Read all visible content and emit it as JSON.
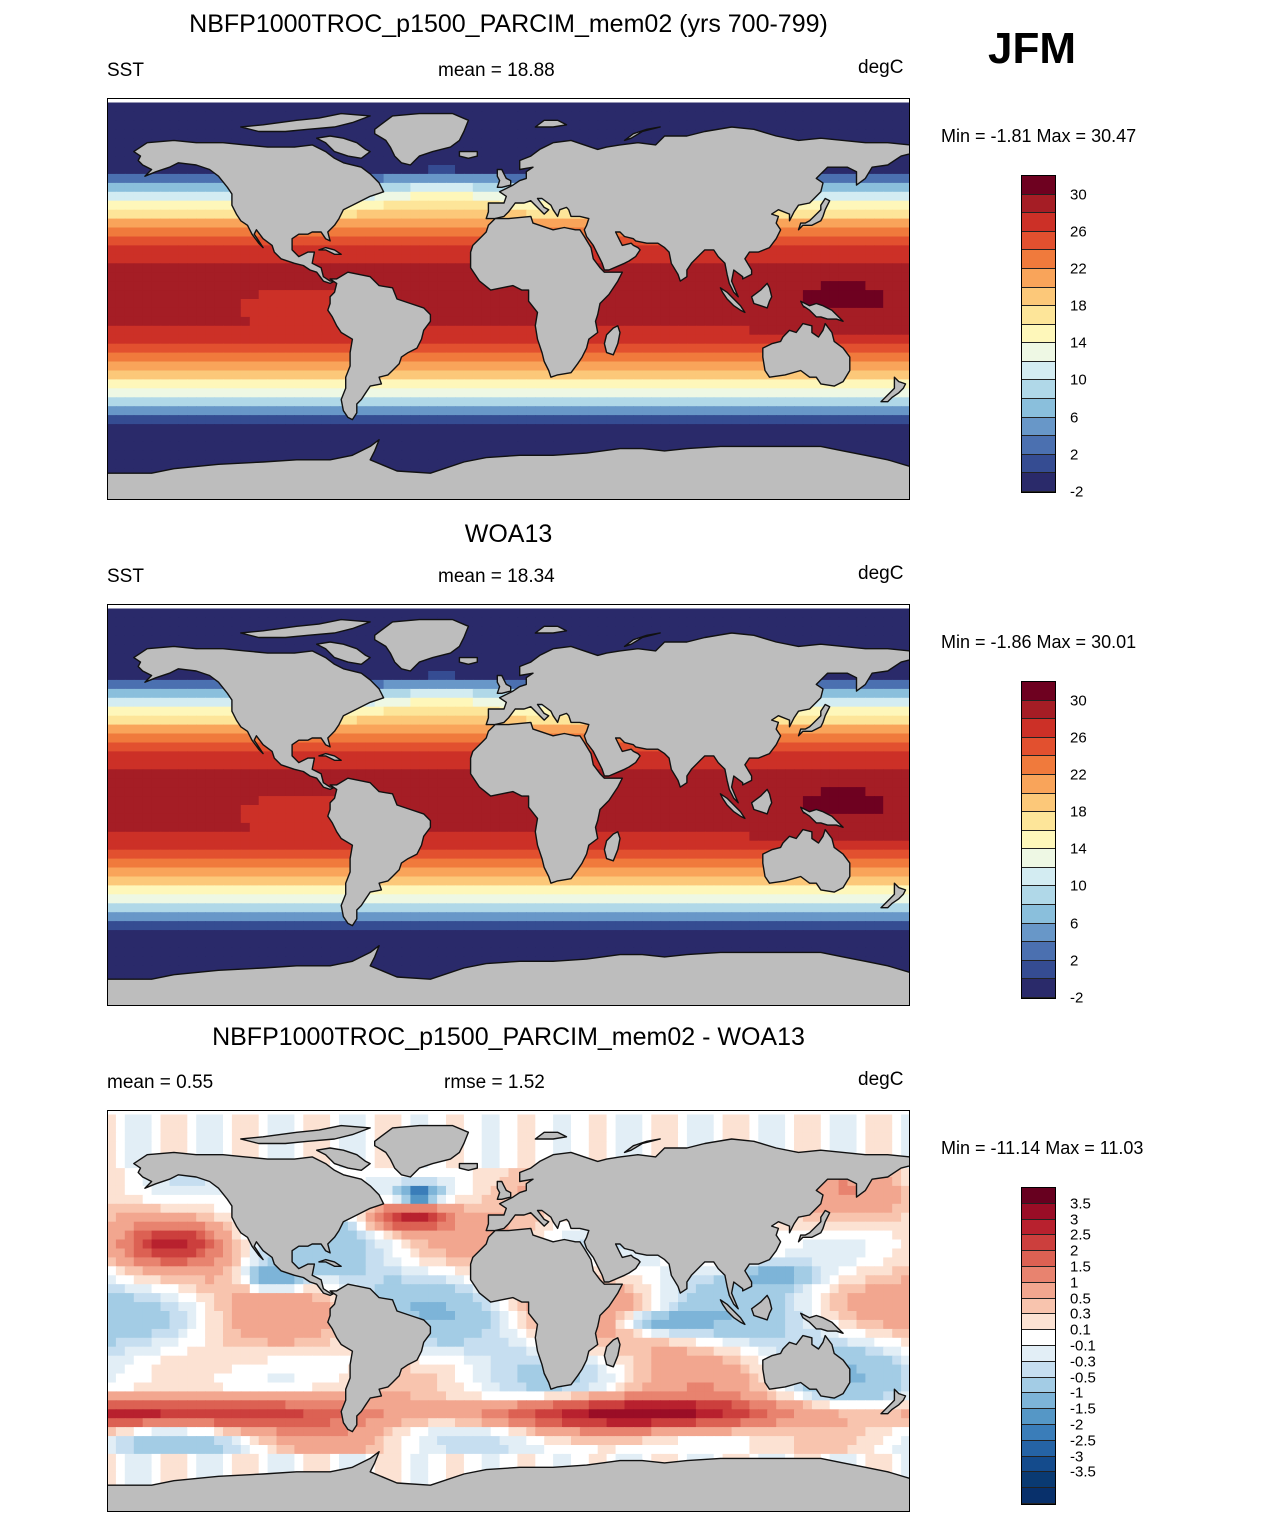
{
  "season_label": "JFM",
  "panels": [
    {
      "title": "NBFP1000TROC_p1500_PARCIM_mem02 (yrs 700-799)",
      "left_label": "SST",
      "center_label": "mean =  18.88",
      "right_label": "degC",
      "minmax": "Min =  -1.81 Max =  30.47",
      "kind": "sst"
    },
    {
      "title": "WOA13",
      "left_label": "SST",
      "center_label": "mean =  18.34",
      "right_label": "degC",
      "minmax": "Min =  -1.86 Max =  30.01",
      "kind": "sst"
    },
    {
      "title": "NBFP1000TROC_p1500_PARCIM_mem02 - WOA13",
      "left_label": "mean =    0.55",
      "center_label": "rmse =    1.52",
      "right_label": "degC",
      "minmax": "Min = -11.14 Max =  11.03",
      "kind": "diff"
    }
  ],
  "colorbars": {
    "sst": {
      "colors": [
        "#6e0120",
        "#a51d25",
        "#cc3027",
        "#e2502f",
        "#f07a3c",
        "#f9a45a",
        "#fcc879",
        "#fde599",
        "#fef7ba",
        "#eef8e4",
        "#d3ecf2",
        "#b0d8e8",
        "#8abfdc",
        "#6897c8",
        "#4b70b0",
        "#354c92",
        "#2a2a6a"
      ],
      "labels": [
        "30",
        "26",
        "22",
        "18",
        "14",
        "10",
        "6",
        "2",
        "-2"
      ]
    },
    "diff": {
      "colors": [
        "#67001f",
        "#9a0d26",
        "#b8212e",
        "#cc3f3d",
        "#dc6153",
        "#e8836f",
        "#f2a68f",
        "#f8c4ae",
        "#fce2d3",
        "#ffffff",
        "#e2eef6",
        "#c6def0",
        "#a3cce5",
        "#7db4d8",
        "#5597c6",
        "#3a7db9",
        "#2563a5",
        "#144b8c",
        "#0a3a72",
        "#08306b"
      ],
      "labels": [
        "3.5",
        "3",
        "2.5",
        "2",
        "1.5",
        "1",
        "0.5",
        "0.3",
        "0.1",
        "-0.1",
        "-0.3",
        "-0.5",
        "-1",
        "-1.5",
        "-2",
        "-2.5",
        "-3",
        "-3.5"
      ]
    }
  },
  "map_colors": {
    "land": "#bdbdbd",
    "coast": "#111111"
  }
}
